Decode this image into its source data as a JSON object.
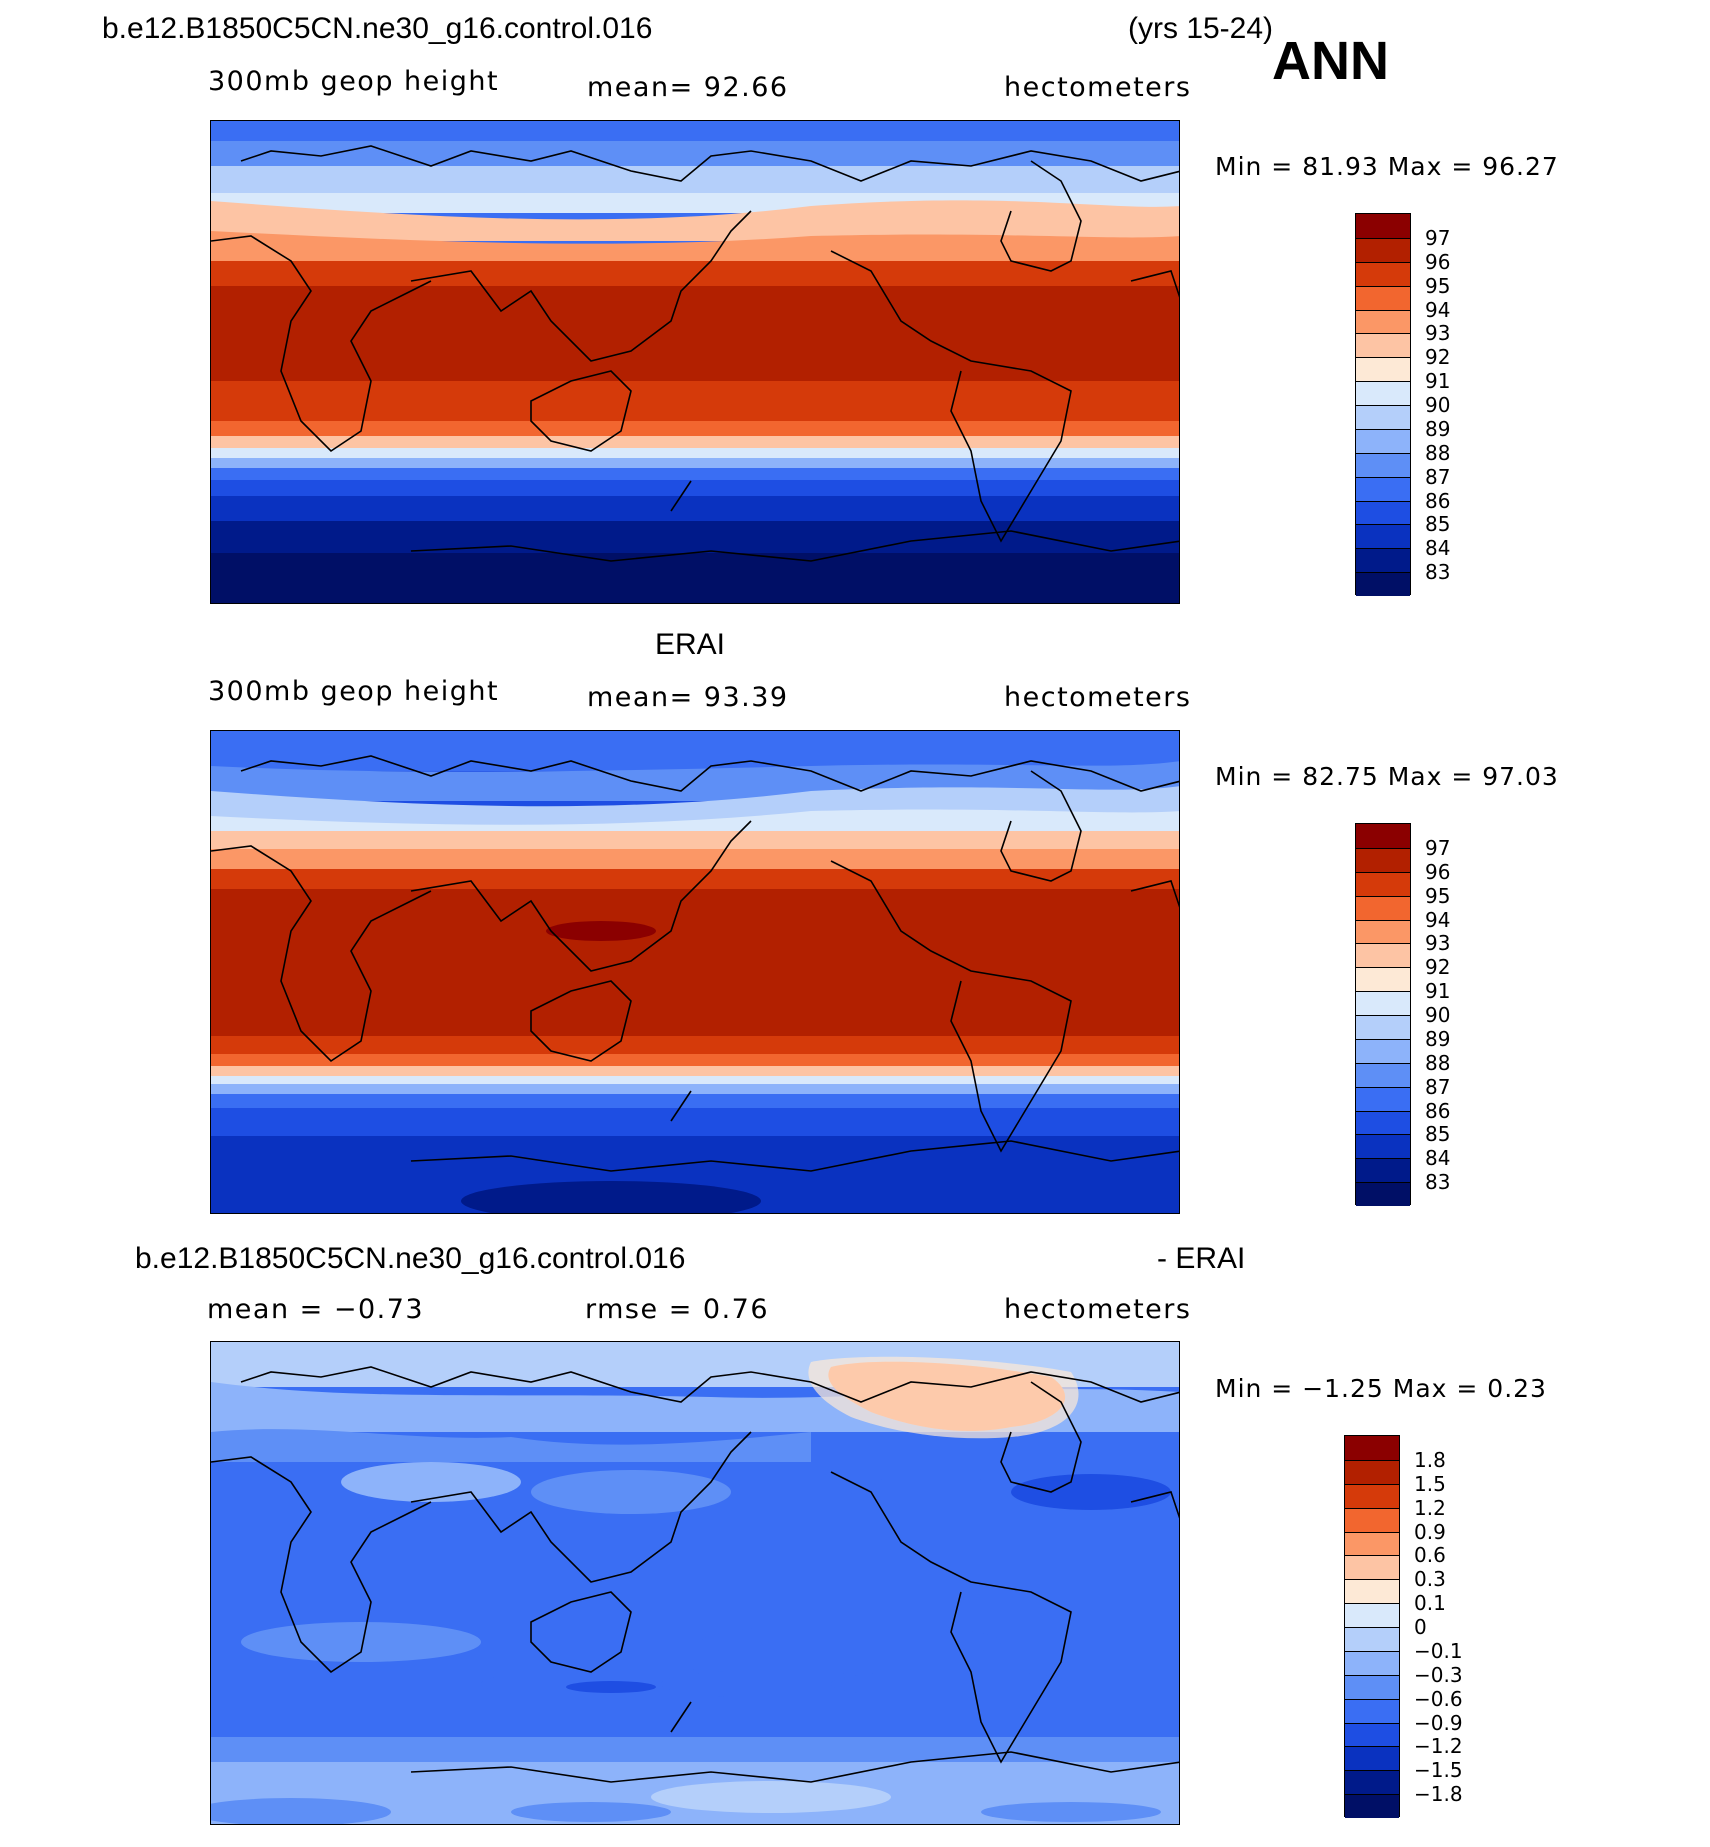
{
  "case_title": "b.e12.B1850C5CN.ne30_g16.control.016",
  "years": "(yrs 15-24)",
  "season": "ANN",
  "panels": [
    {
      "title": "",
      "variable": "300mb geop height",
      "stat_text": "mean=   92.66",
      "units": "hectometers",
      "minmax": "Min =   81.93  Max =   96.27",
      "colorbar_labels": [
        "97",
        "96",
        "95",
        "94",
        "93",
        "92",
        "91",
        "90",
        "89",
        "88",
        "87",
        "86",
        "85",
        "84",
        "83"
      ]
    },
    {
      "title": "ERAI",
      "variable": "300mb geop height",
      "stat_text": "mean=   93.39",
      "units": "hectometers",
      "minmax": "Min =   82.75  Max =   97.03",
      "colorbar_labels": [
        "97",
        "96",
        "95",
        "94",
        "93",
        "92",
        "91",
        "90",
        "89",
        "88",
        "87",
        "86",
        "85",
        "84",
        "83"
      ]
    },
    {
      "title_left": "b.e12.B1850C5CN.ne30_g16.control.016",
      "title_right": "- ERAI",
      "stat_left": "mean =   −0.73",
      "stat_mid": "rmse =     0.76",
      "units": "hectometers",
      "minmax": "Min =   −1.25  Max =     0.23",
      "colorbar_labels": [
        "1.8",
        "1.5",
        "1.2",
        "0.9",
        "0.6",
        "0.3",
        "0.1",
        "0",
        "−0.1",
        "−0.3",
        "−0.6",
        "−0.9",
        "−1.2",
        "−1.5",
        "−1.8"
      ]
    }
  ],
  "colors": {
    "field_scale": [
      "#8b0000",
      "#b22000",
      "#d53a0a",
      "#f2662f",
      "#fb9766",
      "#fdc4a4",
      "#fde9d6",
      "#d9e9fb",
      "#b4cffa",
      "#8db3fa",
      "#5e8ff6",
      "#3a6ef3",
      "#1e4ee3",
      "#0a32c0",
      "#001a8a",
      "#000f66"
    ],
    "diff_scale": [
      "#8b0000",
      "#b22000",
      "#d53a0a",
      "#f2662f",
      "#fb9766",
      "#fdc4a4",
      "#fde9d6",
      "#d9e9fb",
      "#b4cffa",
      "#8db3fa",
      "#5e8ff6",
      "#3a6ef3",
      "#1e4ee3",
      "#0a32c0",
      "#001a8a",
      "#000f66"
    ]
  }
}
